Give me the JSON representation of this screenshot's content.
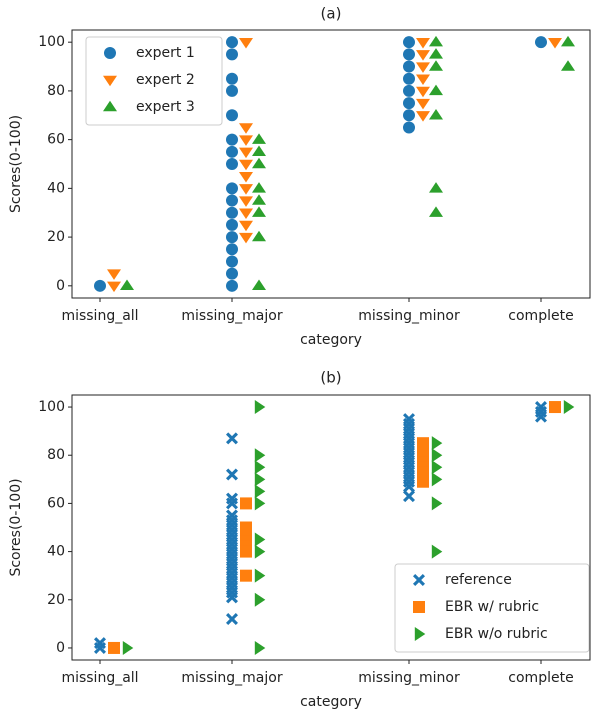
{
  "chart_data": [
    {
      "type": "strip",
      "title": "(a)",
      "x_label": "category",
      "y_label": "Scores(0-100)",
      "categories": [
        "missing_all",
        "missing_major",
        "missing_minor",
        "complete"
      ],
      "ylim": [
        -5,
        105
      ],
      "yticks": [
        0,
        20,
        40,
        60,
        80,
        100
      ],
      "legend": "upper left",
      "series": [
        {
          "name": "expert 1",
          "color": "#1f77b4",
          "marker": "circle",
          "values": [
            [
              0
            ],
            [
              100,
              95,
              85,
              80,
              70,
              60,
              55,
              50,
              40,
              35,
              30,
              25,
              20,
              15,
              10,
              5,
              0
            ],
            [
              100,
              95,
              90,
              85,
              80,
              75,
              70,
              65
            ],
            [
              100
            ]
          ]
        },
        {
          "name": "expert 2",
          "color": "#ff7f0e",
          "marker": "triangle-down",
          "values": [
            [
              5,
              0
            ],
            [
              100,
              65,
              60,
              55,
              50,
              45,
              40,
              35,
              30,
              25,
              20
            ],
            [
              100,
              95,
              90,
              85,
              80,
              75,
              70
            ],
            [
              100
            ]
          ]
        },
        {
          "name": "expert 3",
          "color": "#2ca02c",
          "marker": "triangle-up",
          "values": [
            [
              0
            ],
            [
              60,
              55,
              50,
              40,
              35,
              30,
              20,
              0
            ],
            [
              100,
              95,
              90,
              80,
              70,
              40,
              30
            ],
            [
              100,
              90
            ]
          ]
        }
      ]
    },
    {
      "type": "strip",
      "title": "(b)",
      "x_label": "category",
      "y_label": "Scores(0-100)",
      "categories": [
        "missing_all",
        "missing_major",
        "missing_minor",
        "complete"
      ],
      "ylim": [
        -5,
        105
      ],
      "yticks": [
        0,
        20,
        40,
        60,
        80,
        100
      ],
      "legend": "lower right",
      "series": [
        {
          "name": "reference",
          "color": "#1f77b4",
          "marker": "x",
          "values": [
            [
              2,
              0
            ],
            [
              87,
              72,
              62,
              60,
              55,
              53,
              51,
              49,
              47,
              45,
              43,
              41,
              39,
              37,
              35,
              33,
              31,
              29,
              27,
              25,
              23,
              21,
              12
            ],
            [
              95,
              93,
              91,
              89,
              87,
              85,
              83,
              81,
              79,
              77,
              75,
              73,
              71,
              69,
              67,
              63
            ],
            [
              100,
              98,
              96
            ]
          ]
        },
        {
          "name": "EBR w/ rubric",
          "color": "#ff7f0e",
          "marker": "square",
          "values": [
            [
              0
            ],
            [
              60,
              50,
              48,
              46,
              44,
              42,
              40,
              30
            ],
            [
              85,
              83,
              81,
              79,
              77,
              75,
              73,
              71,
              69
            ],
            [
              100
            ]
          ]
        },
        {
          "name": "EBR w/o rubric",
          "color": "#2ca02c",
          "marker": "triangle-right",
          "values": [
            [
              0
            ],
            [
              100,
              80,
              75,
              70,
              65,
              60,
              45,
              40,
              30,
              20,
              0
            ],
            [
              85,
              80,
              75,
              70,
              60,
              40
            ],
            [
              100
            ]
          ]
        }
      ]
    }
  ]
}
